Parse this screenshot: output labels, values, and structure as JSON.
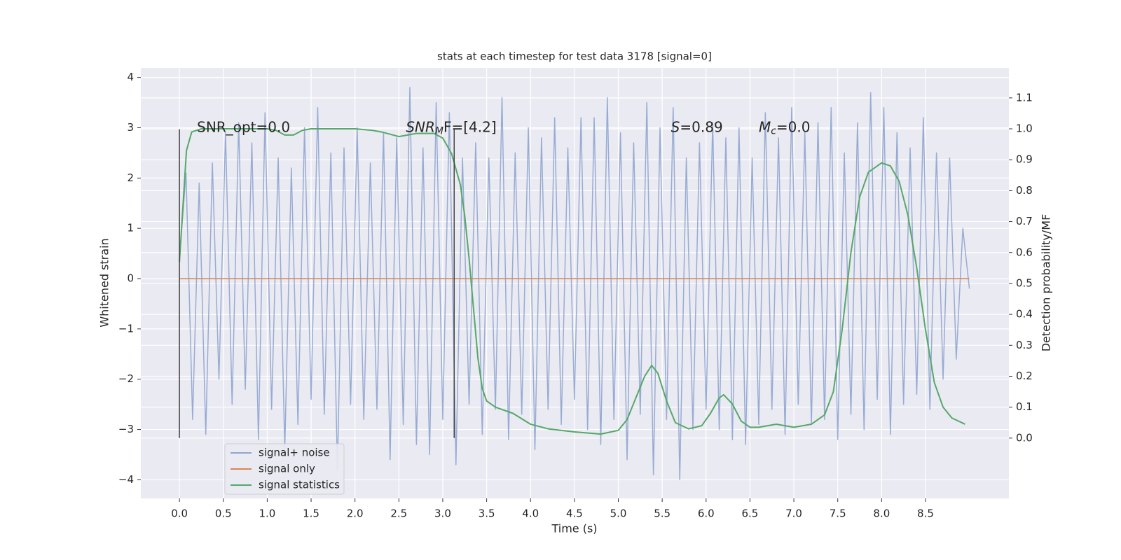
{
  "chart_data": {
    "type": "line",
    "title": "stats at each timestep for test data 3178 [signal=0]",
    "xlabel": "Time (s)",
    "ylabel": "Whitened strain",
    "y2label": "Detection probability/MF",
    "xlim": [
      -0.44,
      9.45
    ],
    "ylim": [
      -4.37,
      4.19
    ],
    "y2lim": [
      -0.195,
      1.197
    ],
    "xticks": [
      {
        "value": 0,
        "label": "0.0"
      },
      {
        "value": 0.5,
        "label": "0.5"
      },
      {
        "value": 1,
        "label": "1.0"
      },
      {
        "value": 1.5,
        "label": "1.5"
      },
      {
        "value": 2,
        "label": "2.0"
      },
      {
        "value": 2.5,
        "label": "2.5"
      },
      {
        "value": 3,
        "label": "3.0"
      },
      {
        "value": 3.5,
        "label": "3.5"
      },
      {
        "value": 4,
        "label": "4.0"
      },
      {
        "value": 4.5,
        "label": "4.5"
      },
      {
        "value": 5,
        "label": "5.0"
      },
      {
        "value": 5.5,
        "label": "5.5"
      },
      {
        "value": 6,
        "label": "6.0"
      },
      {
        "value": 6.5,
        "label": "6.5"
      },
      {
        "value": 7,
        "label": "7.0"
      },
      {
        "value": 7.5,
        "label": "7.5"
      },
      {
        "value": 8,
        "label": "8.0"
      },
      {
        "value": 8.5,
        "label": "8.5"
      }
    ],
    "yticks": [
      {
        "value": -4,
        "label": "−4"
      },
      {
        "value": -3,
        "label": "−3"
      },
      {
        "value": -2,
        "label": "−2"
      },
      {
        "value": -1,
        "label": "−1"
      },
      0,
      1,
      2,
      3,
      4
    ],
    "y2ticks": [
      {
        "value": 0,
        "label": "0.0"
      },
      {
        "value": 0.1,
        "label": "0.1"
      },
      {
        "value": 0.2,
        "label": "0.2"
      },
      {
        "value": 0.3,
        "label": "0.3"
      },
      {
        "value": 0.4,
        "label": "0.4"
      },
      {
        "value": 0.5,
        "label": "0.5"
      },
      {
        "value": 0.6,
        "label": "0.6"
      },
      {
        "value": 0.7,
        "label": "0.7"
      },
      {
        "value": 0.8,
        "label": "0.8"
      },
      {
        "value": 0.9,
        "label": "0.9"
      },
      {
        "value": 1,
        "label": "1.0"
      },
      {
        "value": 1.1,
        "label": "1.1"
      }
    ],
    "grid": true,
    "legend_loc": "lower left",
    "series": [
      {
        "name": "signal+ noise",
        "color": "#8fa5cf",
        "x": [
          0,
          0.075,
          0.15,
          0.225,
          0.3,
          0.375,
          0.45,
          0.525,
          0.6,
          0.675,
          0.75,
          0.825,
          0.9,
          0.975,
          1.05,
          1.125,
          1.2,
          1.275,
          1.35,
          1.425,
          1.5,
          1.575,
          1.65,
          1.725,
          1.8,
          1.875,
          1.95,
          2.025,
          2.1,
          2.175,
          2.25,
          2.325,
          2.4,
          2.475,
          2.55,
          2.625,
          2.7,
          2.775,
          2.85,
          2.925,
          3,
          3.075,
          3.15,
          3.225,
          3.3,
          3.375,
          3.45,
          3.525,
          3.6,
          3.675,
          3.75,
          3.825,
          3.9,
          3.975,
          4.05,
          4.125,
          4.2,
          4.275,
          4.35,
          4.425,
          4.5,
          4.575,
          4.65,
          4.725,
          4.8,
          4.875,
          4.95,
          5.025,
          5.1,
          5.175,
          5.25,
          5.325,
          5.4,
          5.475,
          5.55,
          5.625,
          5.7,
          5.775,
          5.85,
          5.925,
          6,
          6.075,
          6.15,
          6.225,
          6.3,
          6.375,
          6.45,
          6.525,
          6.6,
          6.675,
          6.75,
          6.825,
          6.9,
          6.975,
          7.05,
          7.125,
          7.2,
          7.275,
          7.35,
          7.425,
          7.5,
          7.575,
          7.65,
          7.725,
          7.8,
          7.875,
          7.95,
          8.025,
          8.1,
          8.175,
          8.25,
          8.325,
          8.4,
          8.475,
          8.55,
          8.625,
          8.7,
          8.775,
          8.85,
          8.925,
          9
        ],
        "values": [
          0.4,
          2.1,
          -2.8,
          1.9,
          -3.1,
          2.3,
          -2.0,
          2.9,
          -2.5,
          3.1,
          -2.2,
          2.7,
          -3.2,
          3.3,
          -2.6,
          2.4,
          -3.4,
          2.2,
          -2.9,
          3.0,
          -2.4,
          3.4,
          -2.7,
          2.5,
          -3.8,
          2.6,
          -2.5,
          3.0,
          -2.8,
          2.3,
          -2.6,
          2.9,
          -3.6,
          2.8,
          -2.9,
          3.8,
          -3.3,
          2.6,
          -3.5,
          3.5,
          -2.8,
          3.3,
          -3.7,
          2.4,
          -2.5,
          2.7,
          -3.1,
          2.4,
          -2.6,
          3.6,
          -3.2,
          2.5,
          -2.7,
          3.0,
          -3.4,
          2.8,
          -2.6,
          3.2,
          -2.9,
          2.6,
          -2.4,
          3.2,
          -3.0,
          3.2,
          -3.3,
          3.6,
          -2.8,
          2.9,
          -3.6,
          2.7,
          -2.7,
          3.5,
          -3.9,
          3.0,
          -2.8,
          3.4,
          -4.0,
          2.4,
          -3.0,
          2.7,
          -2.6,
          3.1,
          -3.0,
          2.8,
          -3.2,
          3.0,
          -3.3,
          2.4,
          -2.9,
          3.3,
          -2.6,
          2.8,
          -3.1,
          3.4,
          -2.5,
          2.9,
          -2.9,
          3.1,
          -2.8,
          3.4,
          -3.2,
          2.5,
          -2.7,
          3.1,
          -3.0,
          3.7,
          -2.4,
          3.4,
          -3.1,
          2.9,
          -2.5,
          2.6,
          -2.3,
          3.2,
          -2.6,
          2.5,
          -2.0,
          2.4,
          -1.6,
          1.0,
          -0.2
        ]
      },
      {
        "name": "signal only",
        "color": "#dd8452",
        "x": [
          0,
          9
        ],
        "values": [
          0,
          0
        ]
      },
      {
        "name": "signal statistics",
        "color": "#55a868",
        "axis": "y2",
        "x": [
          0,
          0.08,
          0.14,
          0.25,
          0.5,
          1.0,
          1.1,
          1.2,
          1.3,
          1.4,
          1.5,
          2.0,
          2.2,
          2.3,
          2.5,
          2.7,
          2.9,
          3.0,
          3.1,
          3.2,
          3.25,
          3.3,
          3.35,
          3.4,
          3.45,
          3.5,
          3.6,
          3.8,
          4.0,
          4.2,
          4.5,
          4.8,
          5.0,
          5.1,
          5.2,
          5.3,
          5.38,
          5.45,
          5.55,
          5.65,
          5.8,
          5.95,
          6.05,
          6.15,
          6.2,
          6.3,
          6.4,
          6.5,
          6.6,
          6.8,
          7.0,
          7.2,
          7.35,
          7.45,
          7.55,
          7.65,
          7.75,
          7.85,
          8.0,
          8.1,
          8.2,
          8.3,
          8.4,
          8.5,
          8.6,
          8.7,
          8.8,
          8.95
        ],
        "values": [
          0.57,
          0.93,
          0.99,
          1.0,
          1.0,
          1.0,
          0.995,
          0.98,
          0.98,
          0.995,
          1.0,
          1.0,
          0.995,
          0.99,
          0.975,
          0.985,
          0.985,
          0.97,
          0.92,
          0.82,
          0.72,
          0.58,
          0.42,
          0.26,
          0.16,
          0.12,
          0.1,
          0.08,
          0.045,
          0.03,
          0.02,
          0.013,
          0.025,
          0.06,
          0.13,
          0.2,
          0.235,
          0.21,
          0.12,
          0.05,
          0.03,
          0.04,
          0.08,
          0.13,
          0.14,
          0.11,
          0.055,
          0.035,
          0.035,
          0.045,
          0.035,
          0.045,
          0.075,
          0.15,
          0.35,
          0.6,
          0.78,
          0.86,
          0.89,
          0.88,
          0.83,
          0.72,
          0.55,
          0.35,
          0.18,
          0.1,
          0.065,
          0.045
        ]
      }
    ],
    "vlines": {
      "x": [
        0,
        3.13
      ],
      "ymin": -3.17,
      "ymax": 2.97,
      "color": "#444444"
    },
    "annotations": [
      {
        "text": "SNR_opt=0.0"
      },
      {
        "main": "SNR",
        "sub": "M",
        "tail": "F=[4.2]"
      },
      {
        "main": "S",
        "tail": "=0.89"
      },
      {
        "main": "M",
        "sub": "c",
        "tail": "=0.0"
      }
    ]
  }
}
